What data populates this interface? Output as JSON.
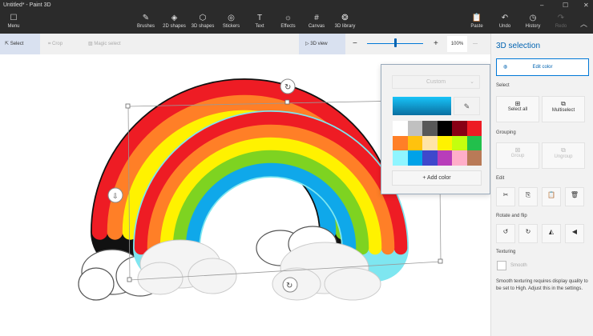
{
  "window": {
    "title": "Untitled* - Paint 3D",
    "minimize": "–",
    "maximize": "☐",
    "close": "✕"
  },
  "toolbar": {
    "menu": "Menu",
    "tools": [
      {
        "label": "Brushes",
        "icon": "brush-icon",
        "glyph": "✎"
      },
      {
        "label": "2D shapes",
        "icon": "2d-shapes-icon",
        "glyph": "◈"
      },
      {
        "label": "3D shapes",
        "icon": "3d-shapes-icon",
        "glyph": "⬡"
      },
      {
        "label": "Stickers",
        "icon": "stickers-icon",
        "glyph": "◎"
      },
      {
        "label": "Text",
        "icon": "text-icon",
        "glyph": "T"
      },
      {
        "label": "Effects",
        "icon": "effects-icon",
        "glyph": "☼"
      },
      {
        "label": "Canvas",
        "icon": "canvas-icon",
        "glyph": "#"
      },
      {
        "label": "3D library",
        "icon": "3d-library-icon",
        "glyph": "❂"
      }
    ],
    "paste": "Paste",
    "undo": "Undo",
    "history": "History",
    "redo": "Redo"
  },
  "subbar": {
    "select": "Select",
    "crop": "Crop",
    "magic_select": "Magic select",
    "view3d": "3D view",
    "zoom": "100%",
    "zoom_level": 0.5,
    "more": "···"
  },
  "panel": {
    "title": "3D selection",
    "edit_color": "Edit color",
    "select_header": "Select",
    "select_all": "Select all",
    "multiselect": "Multiselect",
    "grouping_header": "Grouping",
    "group": "Group",
    "ungroup": "Ungroup",
    "edit_header": "Edit",
    "rotate_header": "Rotate and flip",
    "texturing_header": "Texturing",
    "smooth": "Smooth",
    "note": "Smooth texturing requires display quality to be set to High. Adjust this in the settings."
  },
  "color_picker": {
    "dropdown": "Custom",
    "current_color": "#0fb4ea",
    "add_color": "Add color",
    "swatches": [
      "#ffffff",
      "#c0c0c0",
      "#585858",
      "#000000",
      "#880015",
      "#ed1c24",
      "#ff7f27",
      "#ffc20e",
      "#ffe4a8",
      "#fff200",
      "#c4ff0e",
      "#22c04c",
      "#8ff5ff",
      "#00a2e8",
      "#3f48cc",
      "#b83dba",
      "#ffaec9",
      "#b97a57"
    ]
  },
  "accent": "#0078d7"
}
